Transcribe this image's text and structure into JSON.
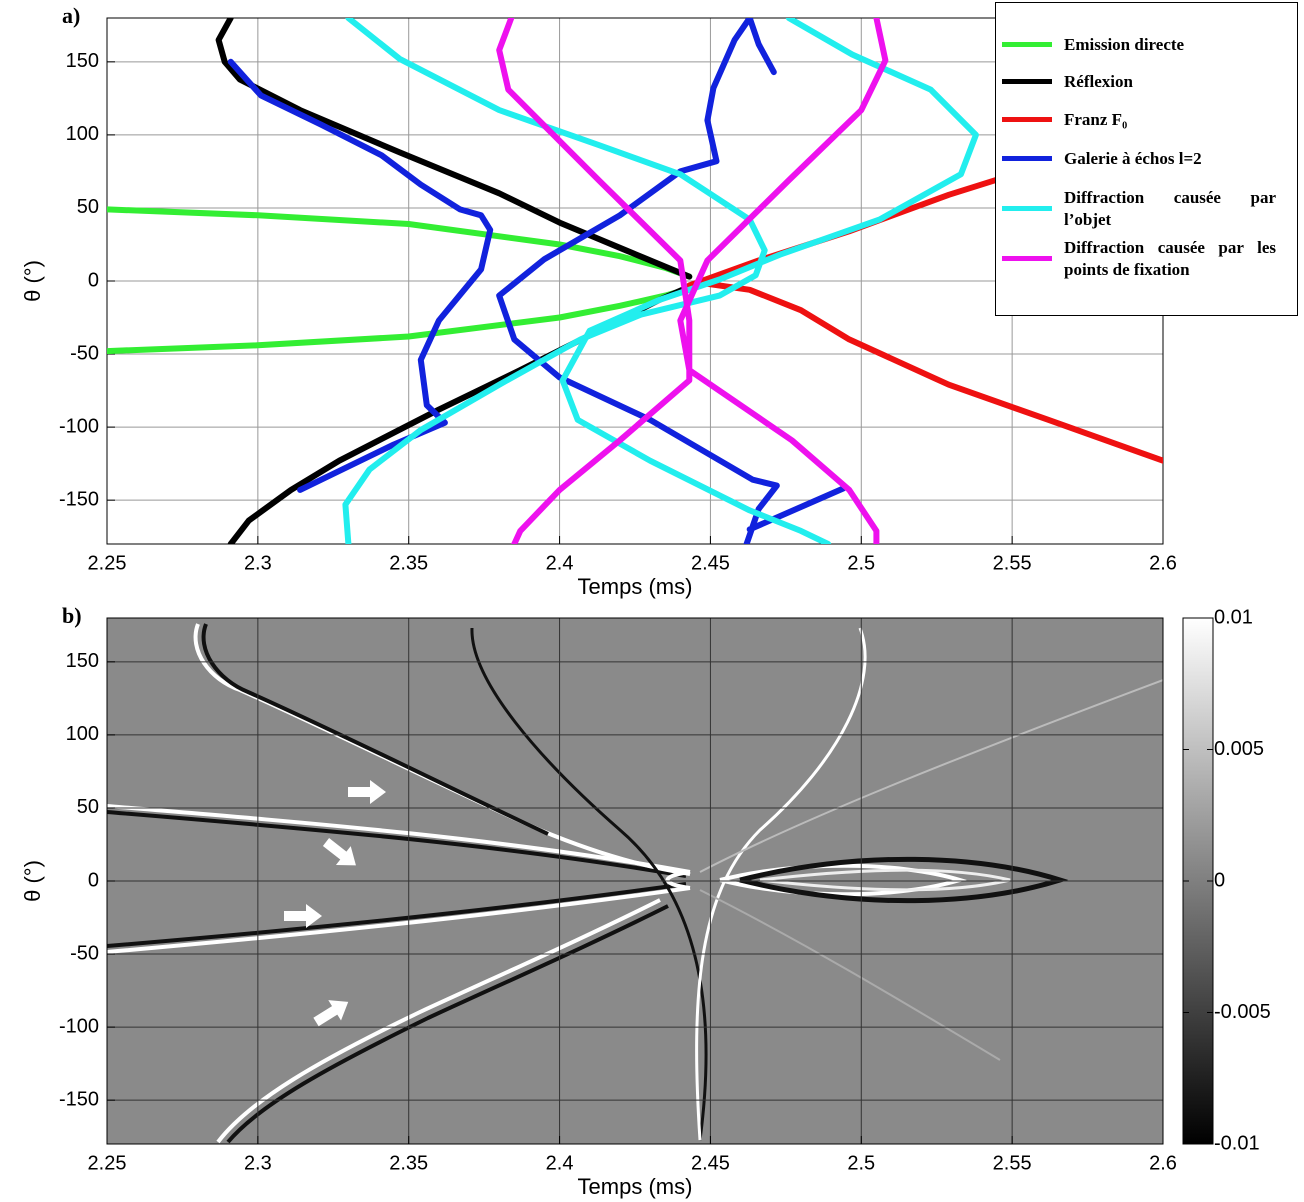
{
  "chart_data": [
    {
      "type": "line",
      "panel_label": "a)",
      "xlabel": "Temps (ms)",
      "ylabel": "θ (°)",
      "xlim": [
        2.25,
        2.6
      ],
      "ylim": [
        -180,
        180
      ],
      "xticks": [
        2.25,
        2.3,
        2.35,
        2.4,
        2.45,
        2.5,
        2.55,
        2.6
      ],
      "yticks": [
        -150,
        -100,
        -50,
        0,
        50,
        100,
        150
      ],
      "grid": true,
      "legend": "upper right",
      "series": [
        {
          "name": "Emission directe",
          "color": "#33ee33",
          "x": [
            2.25,
            2.3,
            2.35,
            2.4,
            2.42,
            2.435,
            2.443,
            null,
            2.25,
            2.3,
            2.35,
            2.4,
            2.42,
            2.435,
            2.447
          ],
          "values": [
            49,
            45,
            39,
            25,
            17,
            9,
            3,
            null,
            -48,
            -44,
            -38,
            -25,
            -17,
            -10,
            -3
          ]
        },
        {
          "name": "Réflexion",
          "color": "#000000",
          "x": [
            2.291,
            2.287,
            2.289,
            2.294,
            2.314,
            2.347,
            2.38,
            2.4,
            2.422,
            2.443,
            null,
            2.291,
            2.297,
            2.311,
            2.327,
            2.36,
            2.387,
            2.413,
            2.433,
            2.443
          ],
          "values": [
            180,
            165,
            150,
            138,
            117,
            88,
            60,
            40,
            21,
            3,
            null,
            -180,
            -164,
            -143,
            -123,
            -88,
            -61,
            -34,
            -13,
            -4
          ]
        },
        {
          "name": "Franz F₀",
          "color": "#ee1111",
          "x": [
            2.443,
            2.466,
            2.496,
            2.529,
            2.546,
            2.6,
            null,
            2.446,
            2.463,
            2.48,
            2.496,
            2.529,
            2.562,
            2.6
          ],
          "values": [
            -3,
            14,
            34,
            59,
            70,
            90,
            null,
            -1,
            -6,
            -20,
            -40,
            -71,
            -95,
            -123
          ]
        },
        {
          "name": "Galerie à échos l=2",
          "color": "#1122dd",
          "x": [
            2.291,
            2.301,
            2.321,
            2.341,
            2.354,
            2.367,
            2.374,
            2.377,
            2.374,
            2.36,
            2.354,
            2.356,
            2.362,
            2.345,
            2.314,
            null,
            2.471,
            2.466,
            2.463,
            2.458,
            2.451,
            2.449,
            2.452,
            2.44,
            2.42,
            2.395,
            2.38,
            2.385,
            2.4,
            2.43,
            2.464,
            2.472,
            2.466,
            2.462,
            null,
            2.463,
            2.494
          ],
          "values": [
            150,
            127,
            107,
            86,
            66,
            49,
            45,
            35,
            8,
            -27,
            -54,
            -85,
            -97,
            -112,
            -143,
            null,
            143,
            162,
            180,
            165,
            132,
            110,
            82,
            75,
            45,
            15,
            -10,
            -40,
            -66,
            -95,
            -136,
            -140,
            -156,
            -180,
            null,
            -170,
            -142
          ]
        },
        {
          "name": "Diffraction causée par l’objet",
          "color": "#22eeee",
          "x": [
            2.33,
            2.347,
            2.38,
            2.413,
            2.44,
            2.463,
            2.468,
            2.465,
            2.453,
            2.427,
            2.407,
            2.38,
            2.354,
            2.337,
            2.329,
            2.33,
            null,
            2.476,
            2.497,
            2.523,
            2.538,
            2.533,
            2.506,
            2.473,
            2.453,
            2.433,
            2.41,
            2.401,
            2.406,
            2.43,
            2.463,
            2.48,
            2.489
          ],
          "values": [
            180,
            152,
            117,
            93,
            73,
            42,
            21,
            4,
            -10,
            -23,
            -40,
            -71,
            -102,
            -129,
            -153,
            -180,
            null,
            180,
            155,
            131,
            100,
            73,
            42,
            18,
            1,
            -13,
            -34,
            -68,
            -95,
            -123,
            -157,
            -171,
            -180
          ]
        },
        {
          "name": "Diffraction causée par les points de fixation",
          "color": "#ee11ee",
          "x": [
            2.384,
            2.38,
            2.383,
            2.413,
            2.44,
            2.443,
            2.443,
            2.42,
            2.4,
            2.387,
            2.385,
            null,
            2.505,
            2.508,
            2.5,
            2.476,
            2.449,
            2.44,
            2.443,
            2.477,
            2.496,
            2.505,
            2.505
          ],
          "values": [
            180,
            158,
            131,
            69,
            14,
            -27,
            -68,
            -109,
            -143,
            -171,
            -180,
            null,
            180,
            151,
            117,
            69,
            14,
            -27,
            -61,
            -109,
            -143,
            -171,
            -180
          ]
        }
      ]
    },
    {
      "type": "heatmap",
      "panel_label": "b)",
      "xlabel": "Temps (ms)",
      "ylabel": "θ (°)",
      "xlim": [
        2.25,
        2.6
      ],
      "ylim": [
        -180,
        180
      ],
      "xticks": [
        2.25,
        2.3,
        2.35,
        2.4,
        2.45,
        2.5,
        2.55,
        2.6
      ],
      "yticks": [
        -150,
        -100,
        -50,
        0,
        50,
        100,
        150
      ],
      "grid": true,
      "colorbar": {
        "lim": [
          -0.01,
          0.01
        ],
        "ticks": [
          -0.01,
          -0.005,
          0,
          0.005,
          0.01
        ]
      }
    }
  ]
}
